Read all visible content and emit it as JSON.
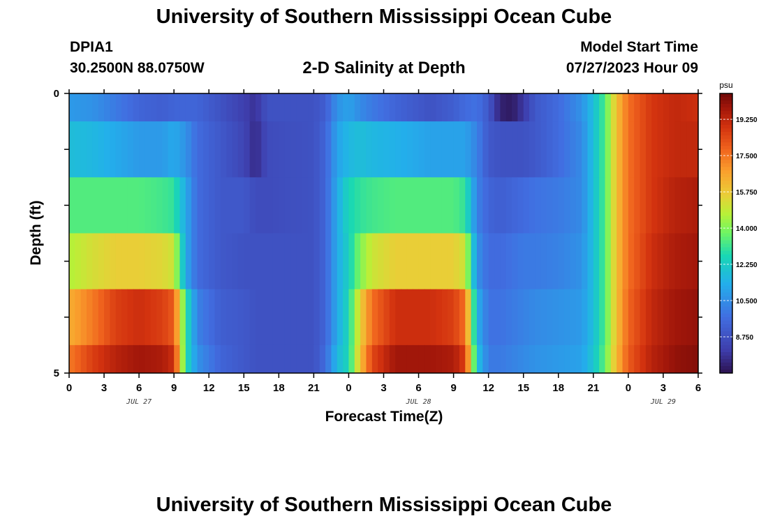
{
  "header": {
    "title": "University of Southern Mississippi Ocean Cube",
    "station_id": "DPIA1",
    "station_coords": "30.2500N  88.0750W",
    "subtitle": "2-D Salinity at Depth",
    "model_start_label": "Model Start Time",
    "model_start_time": "07/27/2023 Hour 09"
  },
  "footer": {
    "title": "University of Southern Mississippi Ocean Cube"
  },
  "chart_data": {
    "type": "heatmap",
    "title": "2-D Salinity at Depth",
    "xlabel": "Forecast Time(Z)",
    "ylabel": "Depth (ft)",
    "x_tick_labels": [
      "0",
      "3",
      "6",
      "9",
      "12",
      "15",
      "18",
      "21",
      "0",
      "3",
      "6",
      "9",
      "12",
      "15",
      "18",
      "21",
      "0",
      "3",
      "6"
    ],
    "date_labels": [
      {
        "label": "JUL 27",
        "tick_index": 2
      },
      {
        "label": "JUL 28",
        "tick_index": 10
      },
      {
        "label": "JUL 29",
        "tick_index": 17
      }
    ],
    "y_tick_labels": [
      {
        "value": 0,
        "label": "0"
      },
      {
        "value": 5,
        "label": "5"
      }
    ],
    "y_range": [
      0,
      5
    ],
    "x_range_hours": [
      0,
      54
    ],
    "colorbar": {
      "unit": "psu",
      "range": [
        7.0,
        20.5
      ],
      "tick_labels": [
        "19.250",
        "17.500",
        "15.750",
        "14.000",
        "12.250",
        "10.500",
        "8.750"
      ],
      "tick_values": [
        19.25,
        17.5,
        15.75,
        14.0,
        12.25,
        10.5,
        8.75
      ]
    },
    "depth_layers": [
      "0.0-0.5",
      "0.5-1.5",
      "1.5-2.5",
      "2.5-3.5",
      "3.5-4.5",
      "4.5-5.0"
    ],
    "series": [
      {
        "hour": 0,
        "salinity": [
          10.8,
          11.8,
          13.4,
          14.6,
          16.4,
          17.4
        ]
      },
      {
        "hour": 2,
        "salinity": [
          10.6,
          11.6,
          13.4,
          15.2,
          17.4,
          18.6
        ]
      },
      {
        "hour": 4,
        "salinity": [
          10.0,
          11.2,
          13.4,
          15.6,
          18.6,
          19.4
        ]
      },
      {
        "hour": 6,
        "salinity": [
          9.4,
          10.8,
          13.4,
          15.6,
          19.0,
          19.8
        ]
      },
      {
        "hour": 8,
        "salinity": [
          9.2,
          10.8,
          13.2,
          15.4,
          18.6,
          19.6
        ]
      },
      {
        "hour": 9,
        "salinity": [
          9.4,
          11.2,
          13.0,
          15.0,
          18.0,
          19.0
        ]
      },
      {
        "hour": 10,
        "salinity": [
          9.4,
          10.6,
          11.2,
          11.2,
          13.0,
          12.8
        ]
      },
      {
        "hour": 11,
        "salinity": [
          9.4,
          9.6,
          9.6,
          9.6,
          10.2,
          10.6
        ]
      },
      {
        "hour": 13,
        "salinity": [
          8.8,
          9.0,
          9.0,
          9.0,
          9.2,
          9.4
        ]
      },
      {
        "hour": 15,
        "salinity": [
          8.2,
          8.4,
          9.0,
          8.8,
          9.0,
          9.0
        ]
      },
      {
        "hour": 16,
        "salinity": [
          7.8,
          7.6,
          8.6,
          8.8,
          8.8,
          8.8
        ]
      },
      {
        "hour": 17,
        "salinity": [
          8.8,
          8.6,
          8.6,
          8.8,
          8.8,
          8.8
        ]
      },
      {
        "hour": 21,
        "salinity": [
          8.8,
          8.8,
          8.8,
          8.8,
          8.8,
          8.8
        ]
      },
      {
        "hour": 22,
        "salinity": [
          9.2,
          9.4,
          9.4,
          9.4,
          9.4,
          9.6
        ]
      },
      {
        "hour": 23,
        "salinity": [
          10.6,
          11.0,
          11.2,
          11.2,
          11.2,
          11.6
        ]
      },
      {
        "hour": 24,
        "salinity": [
          11.0,
          11.6,
          12.6,
          12.4,
          12.6,
          12.6
        ]
      },
      {
        "hour": 25,
        "salinity": [
          10.4,
          11.8,
          13.0,
          14.0,
          15.6,
          16.0
        ]
      },
      {
        "hour": 26,
        "salinity": [
          10.0,
          11.6,
          13.2,
          15.0,
          17.6,
          18.4
        ]
      },
      {
        "hour": 28,
        "salinity": [
          9.4,
          11.4,
          13.4,
          15.6,
          19.0,
          19.8
        ]
      },
      {
        "hour": 31,
        "salinity": [
          8.8,
          11.0,
          13.4,
          15.6,
          19.0,
          19.8
        ]
      },
      {
        "hour": 33,
        "salinity": [
          9.2,
          11.0,
          13.4,
          15.6,
          18.6,
          19.6
        ]
      },
      {
        "hour": 34,
        "salinity": [
          9.6,
          11.0,
          13.0,
          15.0,
          17.6,
          18.6
        ]
      },
      {
        "hour": 35,
        "salinity": [
          9.8,
          10.2,
          10.2,
          10.6,
          11.4,
          12.0
        ]
      },
      {
        "hour": 36,
        "salinity": [
          9.0,
          9.0,
          9.4,
          9.6,
          9.8,
          10.0
        ]
      },
      {
        "hour": 37,
        "salinity": [
          7.4,
          8.8,
          9.2,
          9.6,
          9.8,
          10.0
        ]
      },
      {
        "hour": 38,
        "salinity": [
          7.2,
          8.8,
          9.4,
          9.8,
          10.0,
          10.2
        ]
      },
      {
        "hour": 39,
        "salinity": [
          8.0,
          8.8,
          9.6,
          10.0,
          10.2,
          10.4
        ]
      },
      {
        "hour": 40,
        "salinity": [
          9.0,
          9.0,
          9.8,
          10.0,
          10.4,
          10.6
        ]
      },
      {
        "hour": 42,
        "salinity": [
          9.6,
          9.6,
          10.0,
          10.2,
          10.6,
          10.8
        ]
      },
      {
        "hour": 44,
        "salinity": [
          10.6,
          10.4,
          10.4,
          10.6,
          10.8,
          11.0
        ]
      },
      {
        "hour": 45,
        "salinity": [
          11.8,
          11.8,
          11.8,
          11.8,
          11.8,
          12.0
        ]
      },
      {
        "hour": 46,
        "salinity": [
          13.4,
          13.4,
          13.4,
          13.4,
          13.4,
          13.6
        ]
      },
      {
        "hour": 47,
        "salinity": [
          16.0,
          16.0,
          16.0,
          16.0,
          16.0,
          16.2
        ]
      },
      {
        "hour": 48,
        "salinity": [
          17.6,
          17.6,
          17.6,
          17.6,
          17.8,
          18.0
        ]
      },
      {
        "hour": 50,
        "salinity": [
          18.8,
          18.8,
          18.8,
          19.0,
          19.2,
          19.4
        ]
      },
      {
        "hour": 52,
        "salinity": [
          19.2,
          19.2,
          19.4,
          19.6,
          19.8,
          20.0
        ]
      },
      {
        "hour": 54,
        "salinity": [
          19.0,
          19.2,
          19.6,
          19.8,
          20.0,
          20.2
        ]
      }
    ]
  }
}
